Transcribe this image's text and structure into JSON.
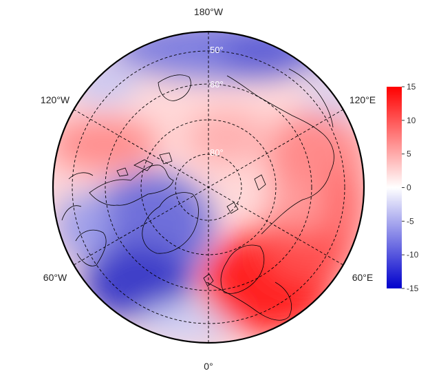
{
  "map": {
    "projection": "north-polar stereographic",
    "longitude_labels": {
      "top": "180°W",
      "upper_left": "120°W",
      "upper_right": "120°E",
      "lower_left": "60°W",
      "lower_right": "60°E",
      "bottom": "0°"
    },
    "latitude_labels": [
      "50°",
      "60°",
      "80°"
    ]
  },
  "colorbar": {
    "ticks": [
      "15",
      "10",
      "5",
      "0",
      "-5",
      "-10",
      "-15"
    ],
    "range": [
      -15,
      15
    ],
    "colors": {
      "high": "#ff0000",
      "mid": "#ffffff",
      "low": "#0000cc"
    }
  },
  "field_colors": {
    "warm_strong": "#ff1e1e",
    "warm": "#ff7a7a",
    "warm_light": "#ffc4c4",
    "cool_light": "#c8c8f4",
    "cool": "#6a6ad8",
    "cool_strong": "#3434c4"
  }
}
